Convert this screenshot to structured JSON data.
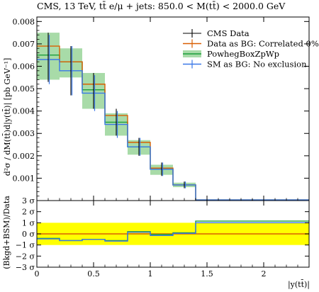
{
  "title": "CMS, 13 TeV, tt̄ e/μ + jets: 850.0 < M(tt̄) < 2000.0 GeV",
  "colors": {
    "cms": "#000000",
    "data_bg": "#d95f02",
    "powheg": "#1b9e3a",
    "powheg_band": "#a8dba8",
    "sm_bg": "#3b78e7",
    "ratio_band": "#ffff00"
  },
  "chart_data": [
    {
      "type": "line",
      "panel": "main",
      "title": "CMS, 13 TeV, tt̄ e/μ + jets: 850.0 < M(tt̄) < 2000.0 GeV",
      "ylabel": "d²σ / dM(tt̄)d|y(tt̄)| [pb GeV⁻¹]",
      "xlabel": "",
      "xlim": [
        0,
        2.4
      ],
      "ylim": [
        0,
        0.0082
      ],
      "yticks": [
        "0.001",
        "0.002",
        "0.003",
        "0.004",
        "0.005",
        "0.006",
        "0.007",
        "0.008"
      ],
      "ytick_values": [
        0.001,
        0.002,
        0.003,
        0.004,
        0.005,
        0.006,
        0.007,
        0.008
      ],
      "bin_edges": [
        0,
        0.2,
        0.4,
        0.6,
        0.8,
        1.0,
        1.2,
        1.4,
        2.4
      ],
      "legend_position": "top-right",
      "series": [
        {
          "name": "CMS Data",
          "style": "points",
          "values": [
            0.0064,
            0.0058,
            0.0049,
            0.0035,
            0.0024,
            0.0014,
            0.0007,
            3e-05
          ],
          "errors": [
            0.0011,
            0.0011,
            0.0008,
            0.0006,
            0.0004,
            0.0003,
            0.00015,
            2e-05
          ]
        },
        {
          "name": "Data as BG: Correlated 0%",
          "style": "step",
          "values": [
            0.0069,
            0.0062,
            0.0052,
            0.0038,
            0.0026,
            0.00145,
            0.0007,
            3e-05
          ]
        },
        {
          "name": "PowhegBoxZpWp",
          "style": "step_band",
          "values": [
            0.0065,
            0.0062,
            0.00495,
            0.0035,
            0.0024,
            0.0014,
            0.0007,
            3e-05
          ],
          "band_low": [
            0.0054,
            0.0055,
            0.0041,
            0.0029,
            0.00205,
            0.00115,
            0.0006,
            2e-05
          ],
          "band_high": [
            0.0075,
            0.0068,
            0.0057,
            0.0039,
            0.0027,
            0.0016,
            0.0008,
            4e-05
          ]
        },
        {
          "name": "SM as BG: No exclusion",
          "style": "step_points",
          "values": [
            0.0063,
            0.0058,
            0.0048,
            0.0034,
            0.0024,
            0.0014,
            0.0007,
            3e-05
          ],
          "errors": [
            0.0011,
            0.0011,
            0.0008,
            0.0006,
            0.0004,
            0.0003,
            0.00015,
            2e-05
          ]
        }
      ]
    },
    {
      "type": "line",
      "panel": "ratio",
      "ylabel": "(Bkgd+BSM)/Data",
      "xlabel": "|y(tt̄)|",
      "xlim": [
        0,
        2.4
      ],
      "ylim": [
        -3,
        3
      ],
      "xticks": [
        "0",
        "0.5",
        "1",
        "1.5",
        "2"
      ],
      "xtick_values": [
        0,
        0.5,
        1,
        1.5,
        2
      ],
      "yticks": [
        "−3 σ",
        "−2 σ",
        "−1 σ",
        "0 σ",
        "1 σ",
        "2 σ",
        "3 σ"
      ],
      "ytick_values": [
        -3,
        -2,
        -1,
        0,
        1,
        2,
        3
      ],
      "band": [
        -1,
        1
      ],
      "bin_edges": [
        0,
        0.2,
        0.4,
        0.6,
        0.8,
        1.0,
        1.2,
        1.4,
        2.4
      ],
      "series": [
        {
          "name": "Data as BG: Correlated 0%",
          "values": [
            0,
            0,
            0,
            0,
            0,
            0,
            0,
            0
          ]
        },
        {
          "name": "PowhegBoxZpWp",
          "values": [
            -0.4,
            -0.6,
            -0.5,
            -0.6,
            0.2,
            -0.05,
            0.1,
            1.15
          ]
        },
        {
          "name": "SM as BG: No exclusion",
          "values": [
            -0.45,
            -0.6,
            -0.5,
            -0.65,
            0.15,
            -0.15,
            0.05,
            1.0
          ]
        }
      ]
    }
  ]
}
